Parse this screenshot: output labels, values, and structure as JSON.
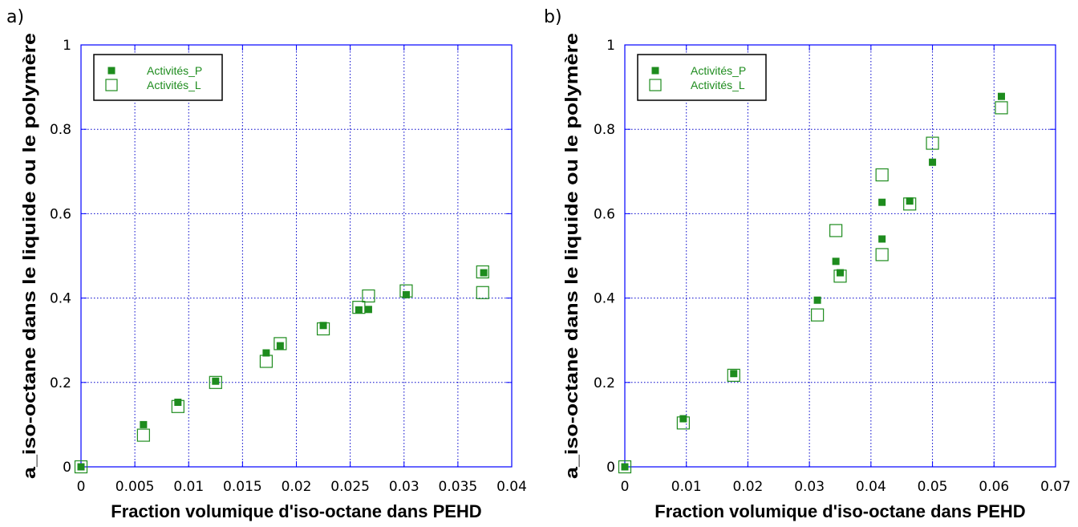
{
  "colors": {
    "marker": "#1e8c1e",
    "grid": "#0000cc",
    "axis": "#0000ff",
    "frame": "#000000"
  },
  "chart_data": [
    {
      "type": "scatter",
      "panel_label": "a)",
      "xlabel": "Fraction volumique d'iso-octane dans PEHD",
      "ylabel": "a_iso-octane dans le liquide ou le polymère",
      "xlim": [
        0,
        0.04
      ],
      "ylim": [
        0,
        1
      ],
      "xticks": [
        0,
        0.005,
        0.01,
        0.015,
        0.02,
        0.025,
        0.03,
        0.035,
        0.04
      ],
      "xtick_labels": [
        "0",
        "0.005",
        "0.01",
        "0.015",
        "0.02",
        "0.025",
        "0.03",
        "0.035",
        "0.04"
      ],
      "yticks": [
        0,
        0.2,
        0.4,
        0.6,
        0.8,
        1
      ],
      "ytick_labels": [
        "0",
        "0.2",
        "0.4",
        "0.6",
        "0.8",
        "1"
      ],
      "grid": true,
      "legend_position": "top-left",
      "series": [
        {
          "name": "Activités_P",
          "marker": "filled-square",
          "x": [
            0,
            0.0058,
            0.009,
            0.0125,
            0.0172,
            0.0185,
            0.0225,
            0.0258,
            0.0267,
            0.0302,
            0.0374
          ],
          "y": [
            0,
            0.1,
            0.153,
            0.203,
            0.27,
            0.287,
            0.335,
            0.372,
            0.373,
            0.408,
            0.46
          ]
        },
        {
          "name": "Activités_L",
          "marker": "open-square",
          "x": [
            0,
            0.0058,
            0.009,
            0.0125,
            0.0172,
            0.0185,
            0.0225,
            0.0258,
            0.0267,
            0.0302,
            0.0373,
            0.0373
          ],
          "y": [
            0,
            0.075,
            0.143,
            0.2,
            0.25,
            0.292,
            0.327,
            0.378,
            0.405,
            0.417,
            0.462,
            0.413
          ]
        }
      ]
    },
    {
      "type": "scatter",
      "panel_label": "b)",
      "xlabel": "Fraction volumique d'iso-octane dans PEHD",
      "ylabel": "a_iso-octane dans le liquide ou le polymère",
      "xlim": [
        0,
        0.07
      ],
      "ylim": [
        0,
        1
      ],
      "xticks": [
        0,
        0.01,
        0.02,
        0.03,
        0.04,
        0.05,
        0.06,
        0.07
      ],
      "xtick_labels": [
        "0",
        "0.01",
        "0.02",
        "0.03",
        "0.04",
        "0.05",
        "0.06",
        "0.07"
      ],
      "yticks": [
        0,
        0.2,
        0.4,
        0.6,
        0.8,
        1
      ],
      "ytick_labels": [
        "0",
        "0.2",
        "0.4",
        "0.6",
        "0.8",
        "1"
      ],
      "grid": true,
      "legend_position": "top-left",
      "series": [
        {
          "name": "Activités_P",
          "marker": "filled-square",
          "x": [
            0,
            0.0095,
            0.0177,
            0.0313,
            0.0343,
            0.035,
            0.0418,
            0.0418,
            0.0463,
            0.05,
            0.0612
          ],
          "y": [
            0,
            0.114,
            0.221,
            0.395,
            0.487,
            0.46,
            0.627,
            0.54,
            0.63,
            0.722,
            0.878
          ]
        },
        {
          "name": "Activités_L",
          "marker": "open-square",
          "x": [
            0,
            0.0095,
            0.0177,
            0.0313,
            0.0343,
            0.035,
            0.0418,
            0.0418,
            0.0463,
            0.05,
            0.0612
          ],
          "y": [
            0,
            0.104,
            0.217,
            0.36,
            0.56,
            0.452,
            0.692,
            0.503,
            0.623,
            0.767,
            0.851
          ]
        }
      ]
    }
  ]
}
